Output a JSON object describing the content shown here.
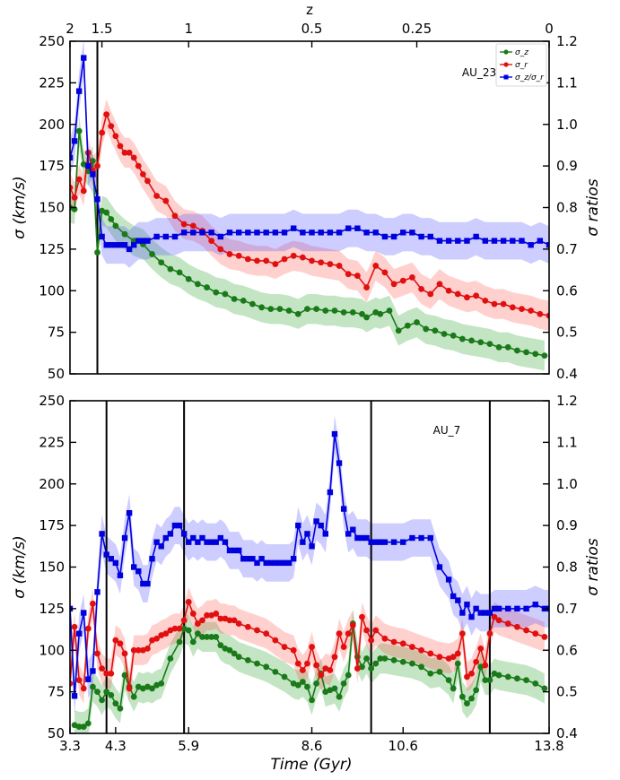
{
  "chart_data": [
    {
      "type": "line",
      "panel_label": "AU_23",
      "ylabel_left": "σ (km/s)",
      "ylabel_right": "σ ratios",
      "top_axis_label": "z",
      "top_ticks": [
        {
          "x": 3.3,
          "label": "2"
        },
        {
          "x": 4.0,
          "label": "1.5"
        },
        {
          "x": 5.9,
          "label": "1"
        },
        {
          "x": 8.6,
          "label": "0.5"
        },
        {
          "x": 10.9,
          "label": "0.25"
        },
        {
          "x": 13.8,
          "label": "0"
        }
      ],
      "xlim": [
        3.3,
        13.8
      ],
      "ylim_left": [
        50,
        250
      ],
      "ylim_right": [
        0.4,
        1.2
      ],
      "yticks_left": [
        "50",
        "75",
        "100",
        "125",
        "150",
        "175",
        "200",
        "225",
        "250"
      ],
      "yticks_right": [
        "0.4",
        "0.5",
        "0.6",
        "0.7",
        "0.8",
        "0.9",
        "1.0",
        "1.1",
        "1.2"
      ],
      "vlines": [
        3.9
      ],
      "legend": {
        "position": "top-right",
        "entries": [
          "σ_z",
          "σ_r",
          "σ_z/σ_r"
        ]
      },
      "series": [
        {
          "name": "σ_z",
          "axis": "left",
          "color": "#1a7a1a",
          "marker": "circle",
          "x": [
            3.3,
            3.4,
            3.5,
            3.6,
            3.7,
            3.8,
            3.9,
            4.0,
            4.1,
            4.2,
            4.3,
            4.5,
            4.7,
            4.9,
            5.1,
            5.3,
            5.5,
            5.7,
            5.9,
            6.1,
            6.3,
            6.5,
            6.7,
            6.9,
            7.1,
            7.3,
            7.5,
            7.7,
            7.9,
            8.1,
            8.3,
            8.5,
            8.7,
            8.9,
            9.1,
            9.3,
            9.5,
            9.7,
            9.8,
            10.0,
            10.1,
            10.3,
            10.5,
            10.7,
            10.9,
            11.1,
            11.3,
            11.5,
            11.7,
            11.9,
            12.1,
            12.3,
            12.5,
            12.7,
            12.9,
            13.1,
            13.3,
            13.5,
            13.7
          ],
          "y": [
            150,
            149,
            196,
            176,
            172,
            178,
            123,
            148,
            147,
            143,
            139,
            134,
            130,
            128,
            122,
            117,
            113,
            111,
            107,
            104,
            102,
            99,
            98,
            95,
            94,
            92,
            90,
            89,
            89,
            88,
            86,
            89,
            89,
            88,
            88,
            87,
            87,
            86,
            84,
            87,
            86,
            88,
            76,
            79,
            81,
            77,
            76,
            74,
            73,
            71,
            70,
            69,
            68,
            66,
            66,
            64,
            63,
            62,
            61
          ]
        },
        {
          "name": "σ_r",
          "axis": "left",
          "color": "#e01010",
          "marker": "circle",
          "x": [
            3.3,
            3.4,
            3.5,
            3.6,
            3.7,
            3.8,
            3.9,
            4.0,
            4.1,
            4.2,
            4.3,
            4.4,
            4.5,
            4.6,
            4.7,
            4.8,
            4.9,
            5.0,
            5.2,
            5.4,
            5.6,
            5.8,
            6.0,
            6.2,
            6.4,
            6.6,
            6.8,
            7.0,
            7.2,
            7.4,
            7.6,
            7.8,
            8.0,
            8.2,
            8.4,
            8.6,
            8.8,
            9.0,
            9.2,
            9.4,
            9.6,
            9.8,
            10.0,
            10.2,
            10.4,
            10.6,
            10.8,
            11.0,
            11.2,
            11.4,
            11.6,
            11.8,
            12.0,
            12.2,
            12.4,
            12.6,
            12.8,
            13.0,
            13.2,
            13.4,
            13.6,
            13.8
          ],
          "y": [
            162,
            156,
            167,
            160,
            183,
            172,
            175,
            195,
            206,
            199,
            193,
            187,
            183,
            183,
            180,
            175,
            170,
            166,
            157,
            154,
            145,
            140,
            139,
            136,
            130,
            125,
            122,
            121,
            119,
            118,
            118,
            116,
            119,
            121,
            120,
            118,
            117,
            116,
            115,
            110,
            109,
            102,
            115,
            111,
            104,
            106,
            108,
            101,
            98,
            104,
            100,
            98,
            96,
            97,
            94,
            92,
            92,
            90,
            89,
            88,
            86,
            85
          ]
        },
        {
          "name": "σ_z/σ_r",
          "axis": "right",
          "color": "#0000dd",
          "marker": "square",
          "x": [
            3.3,
            3.4,
            3.5,
            3.6,
            3.7,
            3.8,
            3.9,
            4.0,
            4.1,
            4.2,
            4.3,
            4.4,
            4.5,
            4.6,
            4.7,
            4.8,
            4.9,
            5.0,
            5.2,
            5.4,
            5.6,
            5.8,
            6.0,
            6.2,
            6.4,
            6.6,
            6.8,
            7.0,
            7.2,
            7.4,
            7.6,
            7.8,
            8.0,
            8.2,
            8.4,
            8.6,
            8.8,
            9.0,
            9.2,
            9.4,
            9.6,
            9.8,
            10.0,
            10.2,
            10.4,
            10.6,
            10.8,
            11.0,
            11.2,
            11.4,
            11.6,
            11.8,
            12.0,
            12.2,
            12.4,
            12.6,
            12.8,
            13.0,
            13.2,
            13.4,
            13.6,
            13.8
          ],
          "y": [
            0.92,
            0.96,
            1.08,
            1.16,
            0.9,
            0.88,
            0.82,
            0.73,
            0.71,
            0.71,
            0.71,
            0.71,
            0.71,
            0.7,
            0.71,
            0.72,
            0.72,
            0.72,
            0.73,
            0.73,
            0.73,
            0.74,
            0.74,
            0.74,
            0.74,
            0.73,
            0.74,
            0.74,
            0.74,
            0.74,
            0.74,
            0.74,
            0.74,
            0.75,
            0.74,
            0.74,
            0.74,
            0.74,
            0.74,
            0.75,
            0.75,
            0.74,
            0.74,
            0.73,
            0.73,
            0.74,
            0.74,
            0.73,
            0.73,
            0.72,
            0.72,
            0.72,
            0.72,
            0.73,
            0.72,
            0.72,
            0.72,
            0.72,
            0.72,
            0.71,
            0.72,
            0.71
          ]
        }
      ]
    },
    {
      "type": "line",
      "panel_label": "AU_7",
      "xlabel": "Time (Gyr)",
      "ylabel_left": "σ (km/s)",
      "ylabel_right": "σ ratios",
      "xticks": [
        {
          "x": 3.3,
          "label": "3.3"
        },
        {
          "x": 4.3,
          "label": "4.3"
        },
        {
          "x": 5.9,
          "label": "5.9"
        },
        {
          "x": 8.6,
          "label": "8.6"
        },
        {
          "x": 10.6,
          "label": "10.6"
        },
        {
          "x": 13.8,
          "label": "13.8"
        }
      ],
      "xlim": [
        3.3,
        13.8
      ],
      "ylim_left": [
        50,
        250
      ],
      "ylim_right": [
        0.4,
        1.2
      ],
      "yticks_left": [
        "50",
        "75",
        "100",
        "125",
        "150",
        "175",
        "200",
        "225",
        "250"
      ],
      "yticks_right": [
        "0.4",
        "0.5",
        "0.6",
        "0.7",
        "0.8",
        "0.9",
        "1.0",
        "1.1",
        "1.2"
      ],
      "vlines": [
        4.1,
        5.8,
        9.9,
        12.5
      ],
      "series": [
        {
          "name": "σ_z",
          "axis": "left",
          "color": "#1a7a1a",
          "marker": "circle",
          "x": [
            3.4,
            3.5,
            3.6,
            3.7,
            3.8,
            3.9,
            4.0,
            4.1,
            4.2,
            4.3,
            4.4,
            4.5,
            4.6,
            4.7,
            4.8,
            4.9,
            5.0,
            5.1,
            5.2,
            5.3,
            5.5,
            5.7,
            5.8,
            5.9,
            6.0,
            6.1,
            6.2,
            6.3,
            6.4,
            6.5,
            6.6,
            6.7,
            6.8,
            6.9,
            7.0,
            7.2,
            7.4,
            7.6,
            7.8,
            8.0,
            8.2,
            8.3,
            8.4,
            8.5,
            8.6,
            8.7,
            8.8,
            8.9,
            9.0,
            9.1,
            9.2,
            9.3,
            9.4,
            9.5,
            9.6,
            9.7,
            9.8,
            9.9,
            10.0,
            10.1,
            10.2,
            10.4,
            10.6,
            10.8,
            11.0,
            11.2,
            11.4,
            11.6,
            11.7,
            11.8,
            11.9,
            12.0,
            12.1,
            12.2,
            12.3,
            12.4,
            12.5,
            12.6,
            12.7,
            12.9,
            13.1,
            13.3,
            13.5,
            13.7
          ],
          "y": [
            55,
            54,
            54,
            56,
            78,
            75,
            70,
            75,
            73,
            68,
            65,
            85,
            78,
            72,
            78,
            77,
            78,
            77,
            79,
            80,
            95,
            105,
            113,
            112,
            105,
            110,
            108,
            108,
            108,
            108,
            103,
            101,
            100,
            98,
            96,
            94,
            92,
            90,
            87,
            84,
            80,
            79,
            81,
            78,
            70,
            80,
            86,
            75,
            76,
            77,
            72,
            80,
            85,
            116,
            96,
            90,
            95,
            89,
            92,
            95,
            95,
            94,
            93,
            92,
            90,
            86,
            87,
            82,
            77,
            92,
            72,
            68,
            71,
            76,
            90,
            82,
            82,
            86,
            85,
            84,
            83,
            82,
            80,
            77
          ]
        },
        {
          "name": "σ_r",
          "axis": "left",
          "color": "#e01010",
          "marker": "circle",
          "x": [
            3.3,
            3.4,
            3.5,
            3.6,
            3.7,
            3.8,
            3.9,
            4.0,
            4.1,
            4.2,
            4.3,
            4.4,
            4.5,
            4.6,
            4.7,
            4.8,
            4.9,
            5.0,
            5.1,
            5.2,
            5.3,
            5.4,
            5.5,
            5.6,
            5.7,
            5.8,
            5.9,
            6.0,
            6.1,
            6.2,
            6.3,
            6.4,
            6.5,
            6.6,
            6.7,
            6.8,
            6.9,
            7.0,
            7.2,
            7.4,
            7.6,
            7.8,
            8.0,
            8.2,
            8.3,
            8.4,
            8.5,
            8.6,
            8.7,
            8.8,
            8.9,
            9.0,
            9.1,
            9.2,
            9.3,
            9.4,
            9.5,
            9.6,
            9.7,
            9.8,
            9.9,
            10.0,
            10.2,
            10.4,
            10.6,
            10.8,
            11.0,
            11.2,
            11.4,
            11.6,
            11.7,
            11.8,
            11.9,
            12.0,
            12.1,
            12.2,
            12.3,
            12.4,
            12.5,
            12.6,
            12.7,
            12.9,
            13.1,
            13.3,
            13.5,
            13.7
          ],
          "y": [
            80,
            114,
            82,
            77,
            113,
            128,
            98,
            89,
            86,
            86,
            106,
            104,
            98,
            77,
            100,
            100,
            100,
            101,
            106,
            107,
            109,
            110,
            112,
            113,
            113,
            118,
            129,
            122,
            116,
            118,
            121,
            121,
            122,
            119,
            119,
            118,
            118,
            116,
            114,
            112,
            110,
            106,
            102,
            100,
            92,
            88,
            92,
            102,
            91,
            85,
            89,
            88,
            96,
            110,
            102,
            110,
            115,
            89,
            120,
            112,
            106,
            112,
            107,
            105,
            104,
            102,
            100,
            98,
            96,
            95,
            96,
            98,
            110,
            84,
            86,
            93,
            101,
            91,
            110,
            120,
            118,
            116,
            114,
            112,
            110,
            108
          ]
        },
        {
          "name": "σ_z/σ_r",
          "axis": "right",
          "color": "#0000dd",
          "marker": "square",
          "x": [
            3.3,
            3.4,
            3.5,
            3.6,
            3.7,
            3.8,
            3.9,
            4.0,
            4.1,
            4.2,
            4.3,
            4.4,
            4.5,
            4.6,
            4.7,
            4.8,
            4.9,
            5.0,
            5.1,
            5.2,
            5.3,
            5.4,
            5.5,
            5.6,
            5.7,
            5.8,
            5.9,
            6.0,
            6.1,
            6.2,
            6.3,
            6.4,
            6.5,
            6.6,
            6.7,
            6.8,
            6.9,
            7.0,
            7.1,
            7.2,
            7.3,
            7.4,
            7.5,
            7.6,
            7.7,
            7.8,
            7.9,
            8.0,
            8.1,
            8.2,
            8.3,
            8.4,
            8.5,
            8.6,
            8.7,
            8.8,
            8.9,
            9.0,
            9.1,
            9.2,
            9.3,
            9.4,
            9.5,
            9.6,
            9.7,
            9.8,
            9.9,
            10.0,
            10.1,
            10.2,
            10.4,
            10.6,
            10.8,
            11.0,
            11.2,
            11.4,
            11.6,
            11.7,
            11.8,
            11.9,
            12.0,
            12.1,
            12.2,
            12.3,
            12.4,
            12.5,
            12.6,
            12.7,
            12.9,
            13.1,
            13.3,
            13.5,
            13.7,
            13.8
          ],
          "y": [
            0.7,
            0.49,
            0.64,
            0.69,
            0.53,
            0.55,
            0.74,
            0.88,
            0.83,
            0.82,
            0.81,
            0.78,
            0.87,
            0.93,
            0.8,
            0.79,
            0.76,
            0.76,
            0.82,
            0.86,
            0.85,
            0.87,
            0.88,
            0.9,
            0.9,
            0.88,
            0.86,
            0.87,
            0.86,
            0.87,
            0.86,
            0.86,
            0.86,
            0.87,
            0.86,
            0.84,
            0.84,
            0.84,
            0.82,
            0.82,
            0.82,
            0.81,
            0.82,
            0.81,
            0.81,
            0.81,
            0.81,
            0.81,
            0.81,
            0.82,
            0.9,
            0.86,
            0.88,
            0.85,
            0.91,
            0.9,
            0.88,
            0.98,
            1.12,
            1.05,
            0.94,
            0.88,
            0.89,
            0.87,
            0.87,
            0.87,
            0.86,
            0.86,
            0.86,
            0.86,
            0.86,
            0.86,
            0.87,
            0.87,
            0.87,
            0.8,
            0.77,
            0.73,
            0.72,
            0.69,
            0.71,
            0.68,
            0.7,
            0.69,
            0.69,
            0.69,
            0.7,
            0.7,
            0.7,
            0.7,
            0.7,
            0.71,
            0.7,
            0.7
          ]
        }
      ]
    }
  ]
}
